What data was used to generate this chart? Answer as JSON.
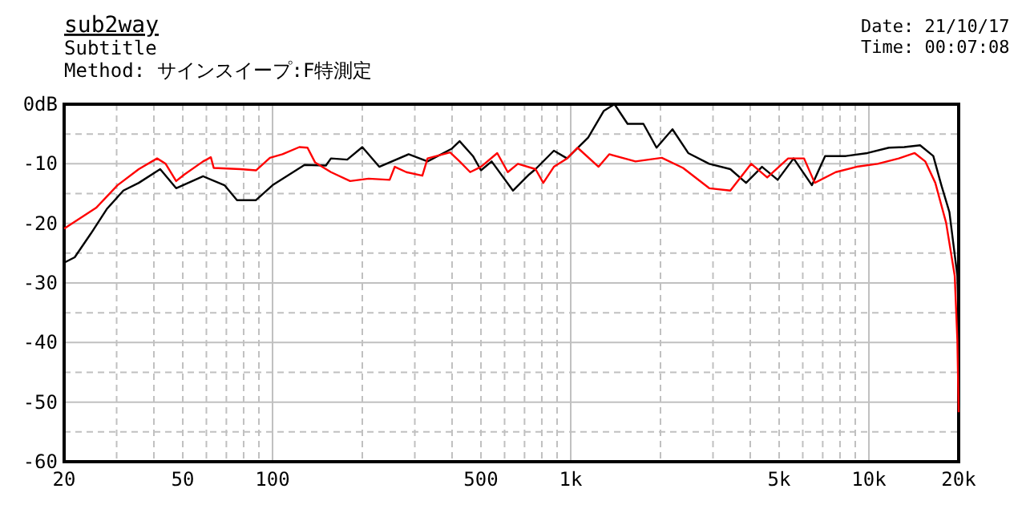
{
  "chart_data": {
    "type": "line",
    "title": "sub2way",
    "subtitle": "Subtitle",
    "annotations": [
      "Method: サインスイープ:F特測定",
      "Date: 21/10/17",
      "Time: 00:07:08"
    ],
    "log": "x",
    "grid": true,
    "xlim": [
      20,
      20000
    ],
    "ylim": [
      -60,
      0
    ],
    "xticks": [
      20,
      {
        "value": 30,
        "label": null
      },
      {
        "value": 40,
        "label": null
      },
      50,
      {
        "value": 60,
        "label": null
      },
      {
        "value": 70,
        "label": null
      },
      {
        "value": 80,
        "label": null
      },
      {
        "value": 90,
        "label": null
      },
      100,
      {
        "value": 200,
        "label": null
      },
      {
        "value": 300,
        "label": null
      },
      {
        "value": 400,
        "label": null
      },
      500,
      {
        "value": 600,
        "label": null
      },
      {
        "value": 700,
        "label": null
      },
      {
        "value": 800,
        "label": null
      },
      {
        "value": 900,
        "label": null
      },
      {
        "value": 1000,
        "label": "1k"
      },
      {
        "value": 2000,
        "label": null
      },
      {
        "value": 3000,
        "label": null
      },
      {
        "value": 4000,
        "label": null
      },
      {
        "value": 5000,
        "label": "5k"
      },
      {
        "value": 6000,
        "label": null
      },
      {
        "value": 7000,
        "label": null
      },
      {
        "value": 8000,
        "label": null
      },
      {
        "value": 9000,
        "label": null
      },
      {
        "value": 10000,
        "label": "10k"
      },
      {
        "value": 20000,
        "label": "20k"
      }
    ],
    "yticks": [
      {
        "value": 0,
        "label": "0dB"
      },
      {
        "value": -5,
        "label": null
      },
      -10,
      {
        "value": -15,
        "label": null
      },
      -20,
      {
        "value": -25,
        "label": null
      },
      -30,
      {
        "value": -35,
        "label": null
      },
      -40,
      {
        "value": -45,
        "label": null
      },
      -50,
      {
        "value": -55,
        "label": null
      },
      -60
    ],
    "series": [
      {
        "color": "#000000",
        "x": [
          20,
          21.7,
          24.6,
          27.8,
          31.6,
          35.6,
          42,
          47.5,
          58.5,
          69,
          76,
          88,
          100,
          128,
          151,
          157,
          178,
          200,
          228,
          286,
          331,
          398,
          424,
          470,
          500,
          543,
          640,
          725,
          762,
          878,
          972,
          1144,
          1292,
          1402,
          1551,
          1753,
          1940,
          2194,
          2478,
          2914,
          3430,
          3873,
          4380,
          4945,
          5590,
          6440,
          7130,
          8370,
          9890,
          11670,
          13140,
          14850,
          16440,
          17500,
          18620,
          19800,
          20000
        ],
        "values": [
          -26.6,
          -25.7,
          -21.7,
          -17.6,
          -14.5,
          -13.2,
          -10.9,
          -14.1,
          -12.1,
          -13.6,
          -16.1,
          -16.1,
          -13.6,
          -10.2,
          -10.3,
          -9.1,
          -9.3,
          -7.2,
          -10.5,
          -8.4,
          -9.6,
          -7.5,
          -6.2,
          -8.7,
          -11.1,
          -9.6,
          -14.5,
          -11.8,
          -10.9,
          -7.8,
          -9.1,
          -5.6,
          -1.1,
          0,
          -3.3,
          -3.3,
          -7.3,
          -4.2,
          -8.2,
          -10.0,
          -10.9,
          -13.2,
          -10.5,
          -12.7,
          -9.1,
          -13.6,
          -8.7,
          -8.7,
          -8.2,
          -7.3,
          -7.2,
          -6.9,
          -8.7,
          -13.6,
          -18.1,
          -28.8,
          -36.9
        ]
      },
      {
        "color": "#ff0000",
        "x": [
          20,
          25.6,
          30.2,
          35.6,
          41,
          43.8,
          47.5,
          50.6,
          58.5,
          62.1,
          63.5,
          78,
          88,
          98,
          108,
          123,
          131,
          139,
          157,
          182,
          210,
          247,
          257,
          281,
          318,
          331,
          394,
          424,
          460,
          500,
          567,
          615,
          665,
          762,
          809,
          878,
          972,
          1054,
          1240,
          1346,
          1649,
          2021,
          2380,
          2914,
          3430,
          4030,
          4560,
          5360,
          6060,
          6580,
          7740,
          9100,
          10700,
          12600,
          14240,
          15450,
          16700,
          18150,
          19400,
          19800,
          20000
        ],
        "values": [
          -20.9,
          -17.4,
          -13.6,
          -10.9,
          -9.1,
          -10.0,
          -12.9,
          -11.8,
          -9.6,
          -8.9,
          -10.7,
          -10.9,
          -11.1,
          -9.0,
          -8.4,
          -7.2,
          -7.3,
          -9.8,
          -11.4,
          -12.9,
          -12.5,
          -12.7,
          -10.5,
          -11.4,
          -12.0,
          -9.1,
          -8.1,
          -9.6,
          -11.4,
          -10.5,
          -8.2,
          -11.4,
          -10.0,
          -10.9,
          -13.2,
          -10.5,
          -9.1,
          -7.3,
          -10.5,
          -8.4,
          -9.6,
          -9.0,
          -10.7,
          -14.1,
          -14.5,
          -10.0,
          -12.3,
          -9.1,
          -9.1,
          -13.2,
          -11.4,
          -10.5,
          -10.0,
          -9.1,
          -8.2,
          -9.6,
          -13.2,
          -19.9,
          -28.8,
          -39.6,
          -51.7
        ]
      }
    ]
  }
}
